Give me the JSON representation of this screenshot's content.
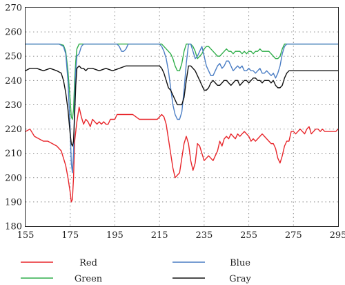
{
  "chart_data": {
    "type": "line",
    "title": "",
    "xlabel": "",
    "ylabel": "",
    "xlim": [
      155,
      295
    ],
    "ylim": [
      180,
      270
    ],
    "xticks": [
      155,
      175,
      195,
      215,
      235,
      255,
      275,
      295
    ],
    "yticks": [
      180,
      190,
      200,
      210,
      220,
      230,
      240,
      250,
      260,
      270
    ],
    "grid": true,
    "legend": "bottom",
    "series": [
      {
        "name": "Red",
        "color": "#e8262b",
        "x": [
          155,
          157,
          159,
          161,
          163,
          165,
          167,
          169,
          171,
          172,
          173,
          174,
          175,
          175.5,
          176,
          176.5,
          177,
          178,
          179,
          180,
          181,
          182,
          183,
          184,
          185,
          186,
          187,
          188,
          189,
          190,
          191,
          192,
          193,
          194,
          195,
          196,
          197,
          198,
          199,
          200,
          203,
          206,
          209,
          212,
          214,
          215,
          216,
          217,
          218,
          219,
          220,
          221,
          222,
          223,
          224,
          225,
          226,
          227,
          228,
          229,
          230,
          231,
          232,
          233,
          234,
          235,
          236,
          237,
          238,
          239,
          240,
          241,
          242,
          243,
          244,
          245,
          246,
          247,
          248,
          249,
          250,
          251,
          252,
          253,
          254,
          255,
          256,
          257,
          258,
          259,
          260,
          261,
          262,
          263,
          264,
          265,
          266,
          267,
          268,
          269,
          270,
          271,
          272,
          273,
          274,
          275,
          276,
          277,
          278,
          279,
          280,
          281,
          282,
          283,
          284,
          285,
          286,
          287,
          288,
          289,
          290,
          291,
          292,
          293,
          294,
          295
        ],
        "values": [
          219,
          220,
          217,
          216,
          215,
          215,
          214,
          213,
          211,
          208,
          205,
          200,
          194,
          190,
          191,
          200,
          215,
          223,
          229,
          225,
          222,
          224,
          223,
          221,
          224,
          223,
          222,
          223,
          222,
          223,
          222,
          222,
          224,
          224,
          224,
          226,
          226,
          226,
          226,
          226,
          226,
          224,
          224,
          224,
          224,
          225,
          226,
          225,
          222,
          216,
          210,
          204,
          200,
          201,
          202,
          208,
          214,
          217,
          214,
          207,
          203,
          206,
          214,
          213,
          210,
          207,
          208,
          209,
          208,
          207,
          209,
          211,
          215,
          213,
          216,
          217,
          216,
          218,
          217,
          216,
          218,
          217,
          218,
          219,
          218,
          217,
          215,
          216,
          215,
          216,
          217,
          218,
          217,
          216,
          215,
          214,
          214,
          212,
          208,
          206,
          209,
          213,
          215,
          215,
          219,
          219,
          218,
          219,
          220,
          219,
          218,
          220,
          221,
          218,
          219,
          220,
          220,
          219,
          220,
          219,
          219,
          219,
          219,
          219,
          219,
          220
        ]
      },
      {
        "name": "Green",
        "color": "#2fae4a",
        "x": [
          155,
          165,
          170,
          172,
          173,
          174,
          175,
          175.5,
          176,
          176.5,
          177,
          177.5,
          178,
          179,
          180,
          181,
          182,
          183,
          190,
          200,
          205,
          210,
          214,
          215,
          216,
          217,
          218,
          219,
          220,
          221,
          222,
          223,
          224,
          225,
          226,
          227,
          228,
          229,
          230,
          231,
          232,
          233,
          234,
          235,
          236,
          237,
          238,
          239,
          240,
          241,
          242,
          243,
          244,
          245,
          246,
          247,
          248,
          249,
          250,
          251,
          252,
          253,
          254,
          255,
          256,
          257,
          258,
          259,
          260,
          261,
          262,
          263,
          264,
          265,
          266,
          267,
          268,
          269,
          270,
          271,
          272,
          273,
          275,
          280,
          285,
          290,
          295
        ],
        "values": [
          255,
          255,
          255,
          254.5,
          252,
          244,
          232,
          225,
          224,
          228,
          240,
          248,
          253,
          255,
          255,
          255,
          255,
          255,
          255,
          255,
          255,
          255,
          255,
          255,
          255,
          254,
          253,
          252,
          251,
          249,
          246,
          244,
          244,
          247,
          252,
          255,
          255,
          255,
          254,
          252,
          249,
          250,
          251,
          253,
          254,
          254,
          253,
          252,
          251,
          250,
          250,
          251,
          252,
          253,
          252,
          252,
          251,
          252,
          252,
          252,
          251,
          252,
          251,
          252,
          252,
          251,
          252,
          252,
          253,
          252,
          252,
          252,
          252,
          251,
          250,
          249,
          249,
          250,
          253,
          255,
          255,
          255,
          255,
          255,
          255,
          255,
          255
        ]
      },
      {
        "name": "Blue",
        "color": "#4a7dc4",
        "x": [
          155,
          165,
          170,
          172,
          173,
          174,
          175,
          175.5,
          176,
          176.5,
          177,
          177.5,
          178,
          179,
          180,
          181,
          182,
          183,
          190,
          196,
          197,
          198,
          199,
          200,
          201,
          202,
          210,
          214,
          215,
          216,
          217,
          218,
          219,
          220,
          221,
          222,
          223,
          224,
          225,
          226,
          227,
          228,
          229,
          230,
          231,
          232,
          233,
          234,
          235,
          236,
          237,
          238,
          239,
          240,
          241,
          242,
          243,
          244,
          245,
          246,
          247,
          248,
          249,
          250,
          251,
          252,
          253,
          254,
          255,
          256,
          257,
          258,
          259,
          260,
          261,
          262,
          263,
          264,
          265,
          266,
          267,
          268,
          269,
          270,
          271,
          272,
          273,
          275,
          280,
          285,
          290,
          295
        ],
        "values": [
          255,
          255,
          255,
          254,
          251,
          240,
          220,
          206,
          202,
          210,
          232,
          244,
          250,
          251,
          254,
          255,
          255,
          255,
          255,
          255,
          254,
          252,
          252,
          253,
          255,
          255,
          255,
          255,
          255,
          254,
          252,
          249,
          244,
          237,
          230,
          226,
          224,
          224,
          227,
          236,
          247,
          255,
          255,
          252,
          249,
          250,
          252,
          254,
          250,
          246,
          244,
          242,
          242,
          244,
          246,
          247,
          245,
          246,
          248,
          248,
          246,
          244,
          245,
          246,
          245,
          246,
          244,
          244,
          245,
          244,
          244,
          243,
          244,
          245,
          243,
          243,
          244,
          243,
          242,
          243,
          241,
          243,
          246,
          251,
          254,
          255,
          255,
          255,
          255,
          255,
          255,
          255
        ]
      },
      {
        "name": "Gray",
        "color": "#111111",
        "x": [
          155,
          157,
          160,
          163,
          166,
          169,
          171,
          172,
          173,
          174,
          175,
          175.5,
          176,
          176.5,
          177,
          177.5,
          178,
          179,
          180,
          181,
          182,
          183,
          185,
          188,
          191,
          194,
          197,
          200,
          205,
          210,
          214,
          215,
          216,
          217,
          218,
          219,
          220,
          221,
          222,
          223,
          224,
          225,
          226,
          227,
          228,
          229,
          230,
          231,
          232,
          233,
          234,
          235,
          236,
          237,
          238,
          239,
          240,
          241,
          242,
          243,
          244,
          245,
          246,
          247,
          248,
          249,
          250,
          251,
          252,
          253,
          254,
          255,
          256,
          257,
          258,
          259,
          260,
          261,
          262,
          263,
          264,
          265,
          266,
          267,
          268,
          269,
          270,
          271,
          272,
          273,
          275,
          278,
          281,
          284,
          287,
          290,
          293,
          295
        ],
        "values": [
          244,
          245,
          245,
          244,
          245,
          244,
          243,
          240,
          235,
          228,
          218,
          214,
          213,
          215,
          226,
          238,
          245,
          246,
          245,
          245,
          244,
          245,
          245,
          244,
          245,
          244,
          245,
          246,
          246,
          246,
          246,
          246,
          245,
          243,
          240,
          237,
          236,
          234,
          232,
          230,
          230,
          230,
          233,
          240,
          246,
          246,
          245,
          244,
          242,
          240,
          238,
          236,
          236,
          237,
          239,
          240,
          239,
          238,
          238,
          239,
          240,
          240,
          239,
          238,
          239,
          240,
          240,
          238,
          239,
          240,
          240,
          239,
          240,
          241,
          241,
          240,
          240,
          239,
          240,
          240,
          240,
          239,
          240,
          238,
          237,
          237,
          238,
          241,
          243,
          244,
          244,
          244,
          244,
          244,
          244,
          244,
          244,
          244
        ]
      }
    ]
  }
}
